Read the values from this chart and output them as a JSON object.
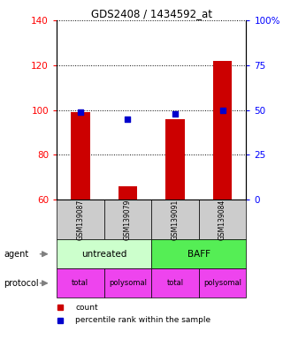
{
  "title": "GDS2408 / 1434592_at",
  "samples": [
    "GSM139087",
    "GSM139079",
    "GSM139091",
    "GSM139084"
  ],
  "bar_values": [
    99,
    66,
    96,
    122
  ],
  "percentile_values": [
    49,
    45,
    48,
    50
  ],
  "ylim_left": [
    60,
    140
  ],
  "ylim_right": [
    0,
    100
  ],
  "yticks_left": [
    60,
    80,
    100,
    120,
    140
  ],
  "yticks_right": [
    0,
    25,
    50,
    75,
    100
  ],
  "ytick_labels_right": [
    "0",
    "25",
    "50",
    "75",
    "100%"
  ],
  "bar_color": "#cc0000",
  "percentile_color": "#0000cc",
  "agent_labels": [
    "untreated",
    "BAFF"
  ],
  "agent_colors": [
    "#ccffcc",
    "#55ee55"
  ],
  "protocol_labels": [
    "total",
    "polysomal",
    "total",
    "polysomal"
  ],
  "protocol_color": "#ee44ee",
  "sample_box_color": "#cccccc",
  "legend_count_color": "#cc0000",
  "legend_percentile_color": "#0000cc"
}
